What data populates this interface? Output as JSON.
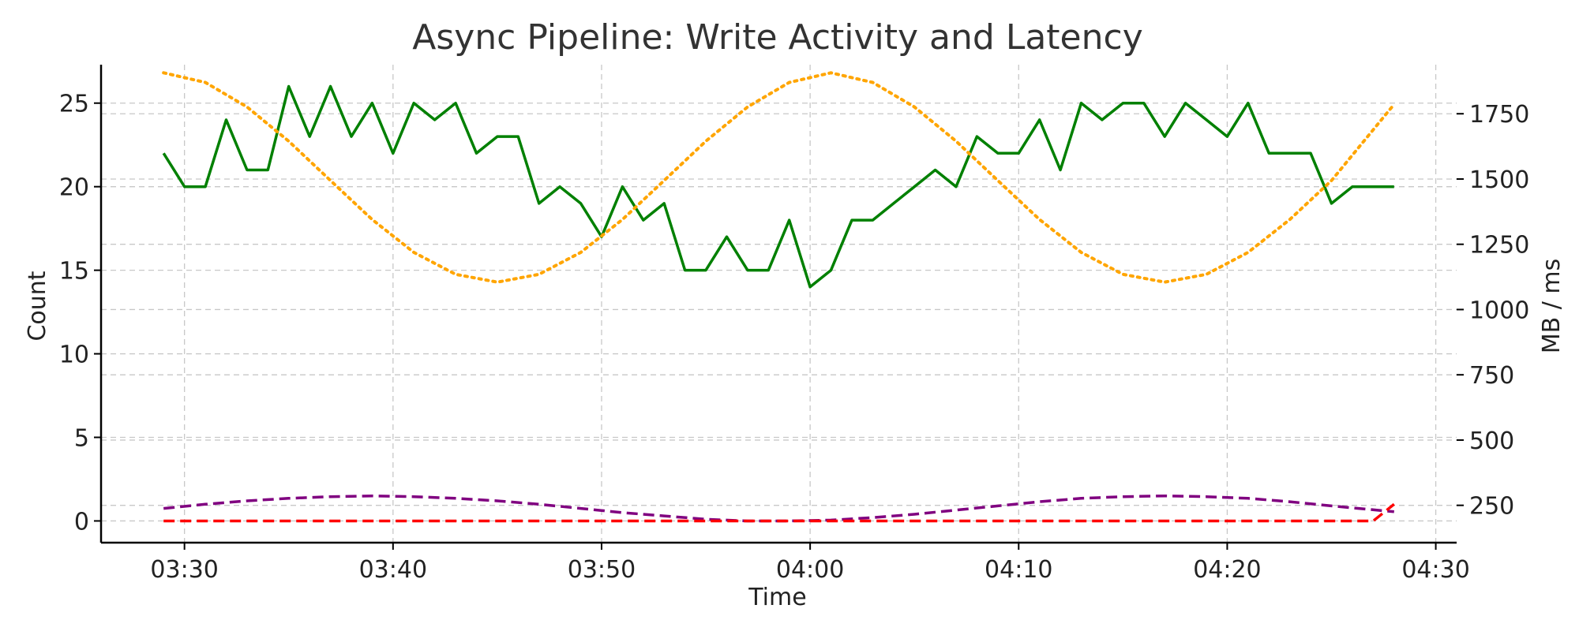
{
  "chart_data": {
    "type": "line",
    "title": "Async Pipeline: Write Activity and Latency",
    "xlabel": "Time",
    "ylabel": "Count",
    "y2label": "MB / ms",
    "xlim": [
      "03:26",
      "04:31"
    ],
    "ylim": [
      -1.3,
      27.3
    ],
    "y2lim": [
      107,
      1938
    ],
    "x_ticks": [
      "03:30",
      "03:40",
      "03:50",
      "04:00",
      "04:10",
      "04:20",
      "04:30"
    ],
    "y_ticks": [
      0,
      5,
      10,
      15,
      20,
      25
    ],
    "y2_ticks": [
      250,
      500,
      750,
      1000,
      1250,
      1500,
      1750
    ],
    "grid": true,
    "legend": "none",
    "series": [
      {
        "axis": "left",
        "color": "#008000",
        "style": "solid",
        "x": [
          "03:29",
          "03:30",
          "03:31",
          "03:32",
          "03:33",
          "03:34",
          "03:35",
          "03:36",
          "03:37",
          "03:38",
          "03:39",
          "03:40",
          "03:41",
          "03:42",
          "03:43",
          "03:44",
          "03:45",
          "03:46",
          "03:47",
          "03:48",
          "03:49",
          "03:50",
          "03:51",
          "03:52",
          "03:53",
          "03:54",
          "03:55",
          "03:56",
          "03:57",
          "03:58",
          "03:59",
          "04:00",
          "04:01",
          "04:02",
          "04:03",
          "04:04",
          "04:05",
          "04:06",
          "04:07",
          "04:08",
          "04:09",
          "04:10",
          "04:11",
          "04:12",
          "04:13",
          "04:14",
          "04:15",
          "04:16",
          "04:17",
          "04:18",
          "04:19",
          "04:20",
          "04:21",
          "04:22",
          "04:23",
          "04:24",
          "04:25",
          "04:26",
          "04:27",
          "04:28"
        ],
        "values": [
          22,
          20,
          20,
          24,
          21,
          21,
          26,
          23,
          26,
          23,
          25,
          22,
          25,
          24,
          25,
          22,
          23,
          23,
          19,
          20,
          19,
          17,
          20,
          18,
          19,
          15,
          15,
          17,
          15,
          15,
          18,
          14,
          15,
          18,
          18,
          19,
          20,
          21,
          20,
          23,
          22,
          22,
          24,
          21,
          25,
          24,
          25,
          25,
          23,
          25,
          24,
          23,
          25,
          22,
          22,
          22,
          19,
          20,
          20,
          20
        ]
      },
      {
        "axis": "right",
        "color": "#ffa500",
        "style": "dotted",
        "x": [
          "03:29",
          "03:31",
          "03:33",
          "03:35",
          "03:37",
          "03:39",
          "03:41",
          "03:43",
          "03:45",
          "03:47",
          "03:49",
          "03:51",
          "03:53",
          "03:55",
          "03:57",
          "03:59",
          "04:01",
          "04:03",
          "04:05",
          "04:07",
          "04:09",
          "04:11",
          "04:13",
          "04:15",
          "04:17",
          "04:19",
          "04:21",
          "04:23",
          "04:25",
          "04:28"
        ],
        "values": [
          1907,
          1870,
          1776,
          1645,
          1494,
          1345,
          1219,
          1135,
          1105,
          1135,
          1219,
          1345,
          1494,
          1645,
          1776,
          1870,
          1907,
          1870,
          1776,
          1645,
          1494,
          1345,
          1219,
          1135,
          1105,
          1135,
          1219,
          1345,
          1494,
          1786
        ]
      },
      {
        "axis": "left",
        "color": "#800080",
        "style": "dashed",
        "x": [
          "03:29",
          "03:31",
          "03:33",
          "03:35",
          "03:37",
          "03:39",
          "03:41",
          "03:43",
          "03:45",
          "03:47",
          "03:49",
          "03:51",
          "03:53",
          "03:55",
          "03:57",
          "03:59",
          "04:01",
          "04:03",
          "04:05",
          "04:07",
          "04:09",
          "04:11",
          "04:13",
          "04:15",
          "04:17",
          "04:19",
          "04:21",
          "04:23",
          "04:25",
          "04:28"
        ],
        "values": [
          0.75,
          1.0,
          1.2,
          1.35,
          1.45,
          1.5,
          1.45,
          1.35,
          1.2,
          1.0,
          0.75,
          0.5,
          0.3,
          0.1,
          0.0,
          0.0,
          0.05,
          0.2,
          0.4,
          0.65,
          0.9,
          1.15,
          1.35,
          1.45,
          1.5,
          1.45,
          1.35,
          1.15,
          0.9,
          0.55
        ]
      },
      {
        "axis": "left",
        "color": "#ff0000",
        "style": "dashed",
        "x": [
          "03:29",
          "04:27",
          "04:28"
        ],
        "values": [
          0,
          0,
          1
        ]
      }
    ]
  }
}
